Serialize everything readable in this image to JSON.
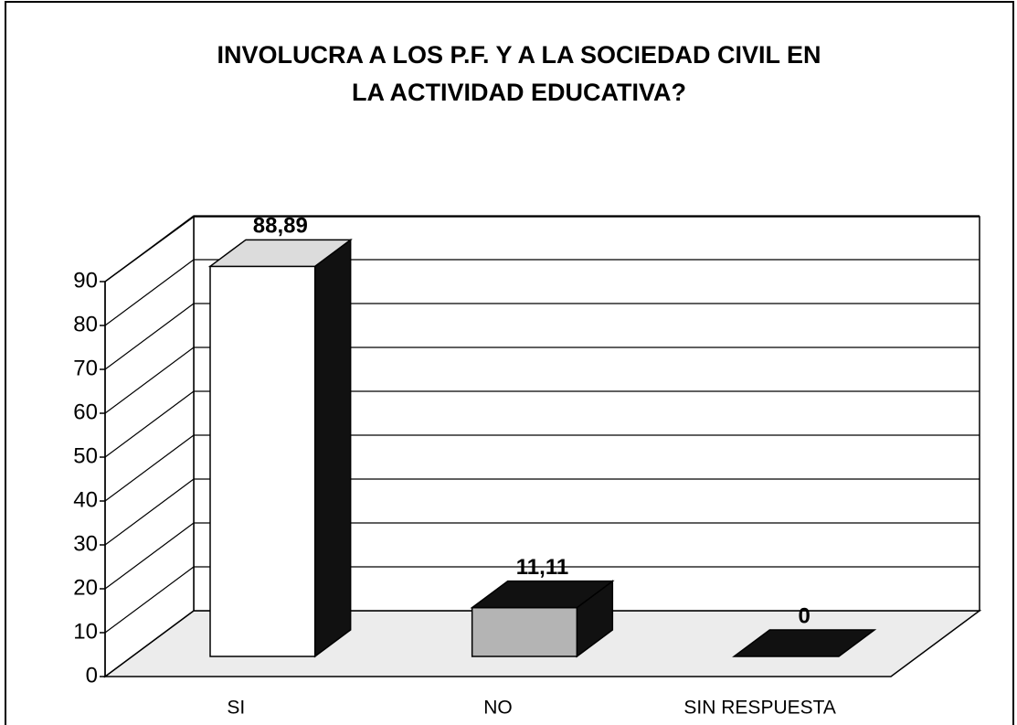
{
  "chart_data": {
    "type": "bar3d",
    "title_lines": [
      "INVOLUCRA A LOS P.F. Y A LA SOCIEDAD CIVIL EN",
      "LA ACTIVIDAD EDUCATIVA?"
    ],
    "categories": [
      "SI",
      "NO",
      "SIN RESPUESTA"
    ],
    "values": [
      88.89,
      11.11,
      0
    ],
    "value_labels": [
      "88,89",
      "11,11",
      "0"
    ],
    "colors": [
      "#ffffff",
      "#b4b4b4",
      "#111111"
    ],
    "ylim": [
      0,
      90
    ],
    "yticks": [
      0,
      10,
      20,
      30,
      40,
      50,
      60,
      70,
      80,
      90
    ],
    "grid": true
  }
}
